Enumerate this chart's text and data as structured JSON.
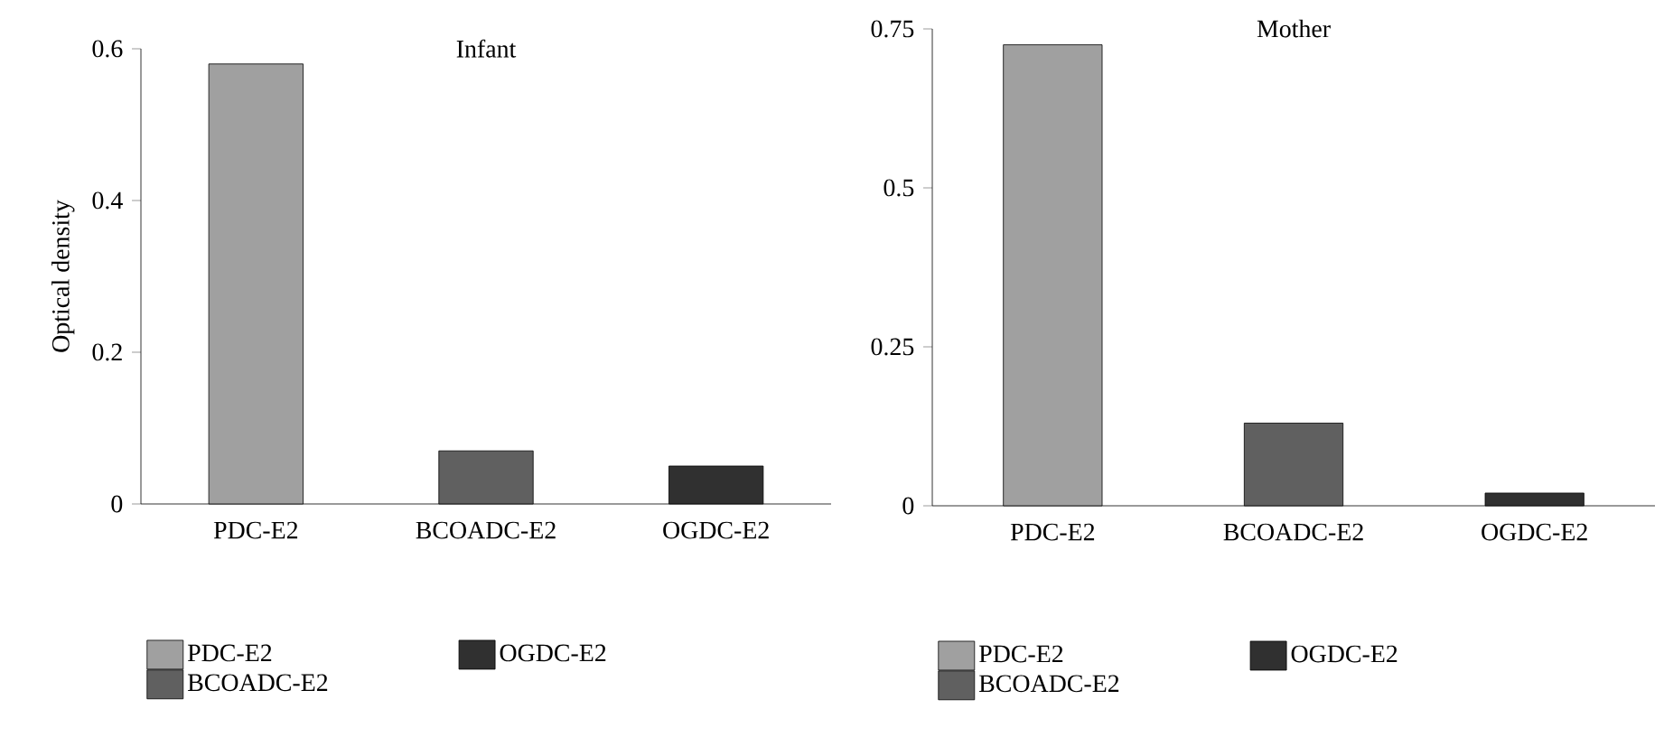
{
  "chart_data": [
    {
      "type": "bar",
      "title": "Infant",
      "ylabel": "Optical density",
      "categories": [
        "PDC-E2",
        "BCOADC-E2",
        "OGDC-E2"
      ],
      "series": [
        {
          "name": "PDC-E2",
          "color": "#a0a0a0",
          "values": [
            0.58,
            null,
            null
          ]
        },
        {
          "name": "BCOADC-E2",
          "color": "#606060",
          "values": [
            null,
            0.07,
            null
          ]
        },
        {
          "name": "OGDC-E2",
          "color": "#303030",
          "values": [
            null,
            null,
            0.05
          ]
        }
      ],
      "ylim": [
        0,
        0.6
      ],
      "yticks": [
        0,
        0.2,
        0.4,
        0.6
      ],
      "legend": "bottom"
    },
    {
      "type": "bar",
      "title": "Mother",
      "categories": [
        "PDC-E2",
        "BCOADC-E2",
        "OGDC-E2"
      ],
      "series": [
        {
          "name": "PDC-E2",
          "color": "#a0a0a0",
          "values": [
            0.725,
            null,
            null
          ]
        },
        {
          "name": "BCOADC-E2",
          "color": "#606060",
          "values": [
            null,
            0.13,
            null
          ]
        },
        {
          "name": "OGDC-E2",
          "color": "#303030",
          "values": [
            null,
            null,
            0.02
          ]
        }
      ],
      "ylim": [
        0,
        0.75
      ],
      "yticks": [
        0,
        0.25,
        0.5,
        0.75
      ],
      "legend": "bottom"
    }
  ]
}
